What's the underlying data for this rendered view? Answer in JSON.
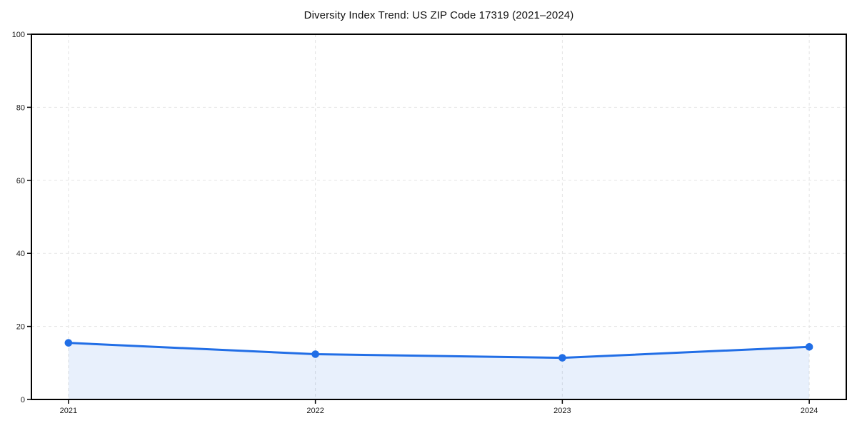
{
  "page": {
    "background": "#ffffff"
  },
  "chart_data": {
    "type": "line",
    "title": "Diversity Index Trend: US ZIP Code 17319 (2021–2024)",
    "categories": [
      "2021",
      "2022",
      "2023",
      "2024"
    ],
    "series": [
      {
        "name": "Diversity Index",
        "values": [
          15.5,
          12.4,
          11.4,
          14.4
        ]
      }
    ],
    "xlabel": "",
    "ylabel": "",
    "ylim": [
      0,
      100
    ],
    "yticks": [
      0,
      20,
      40,
      60,
      80,
      100
    ],
    "grid": "dashed",
    "legend": "none",
    "area_fill": true,
    "markers": "circle",
    "colors": {
      "line": "#216ee6",
      "fill": "rgba(33,110,230,0.10)",
      "grid": "#e3e3e3",
      "axis": "#000000",
      "tick_text": "#1a1a1a",
      "title_text": "#111111"
    }
  }
}
